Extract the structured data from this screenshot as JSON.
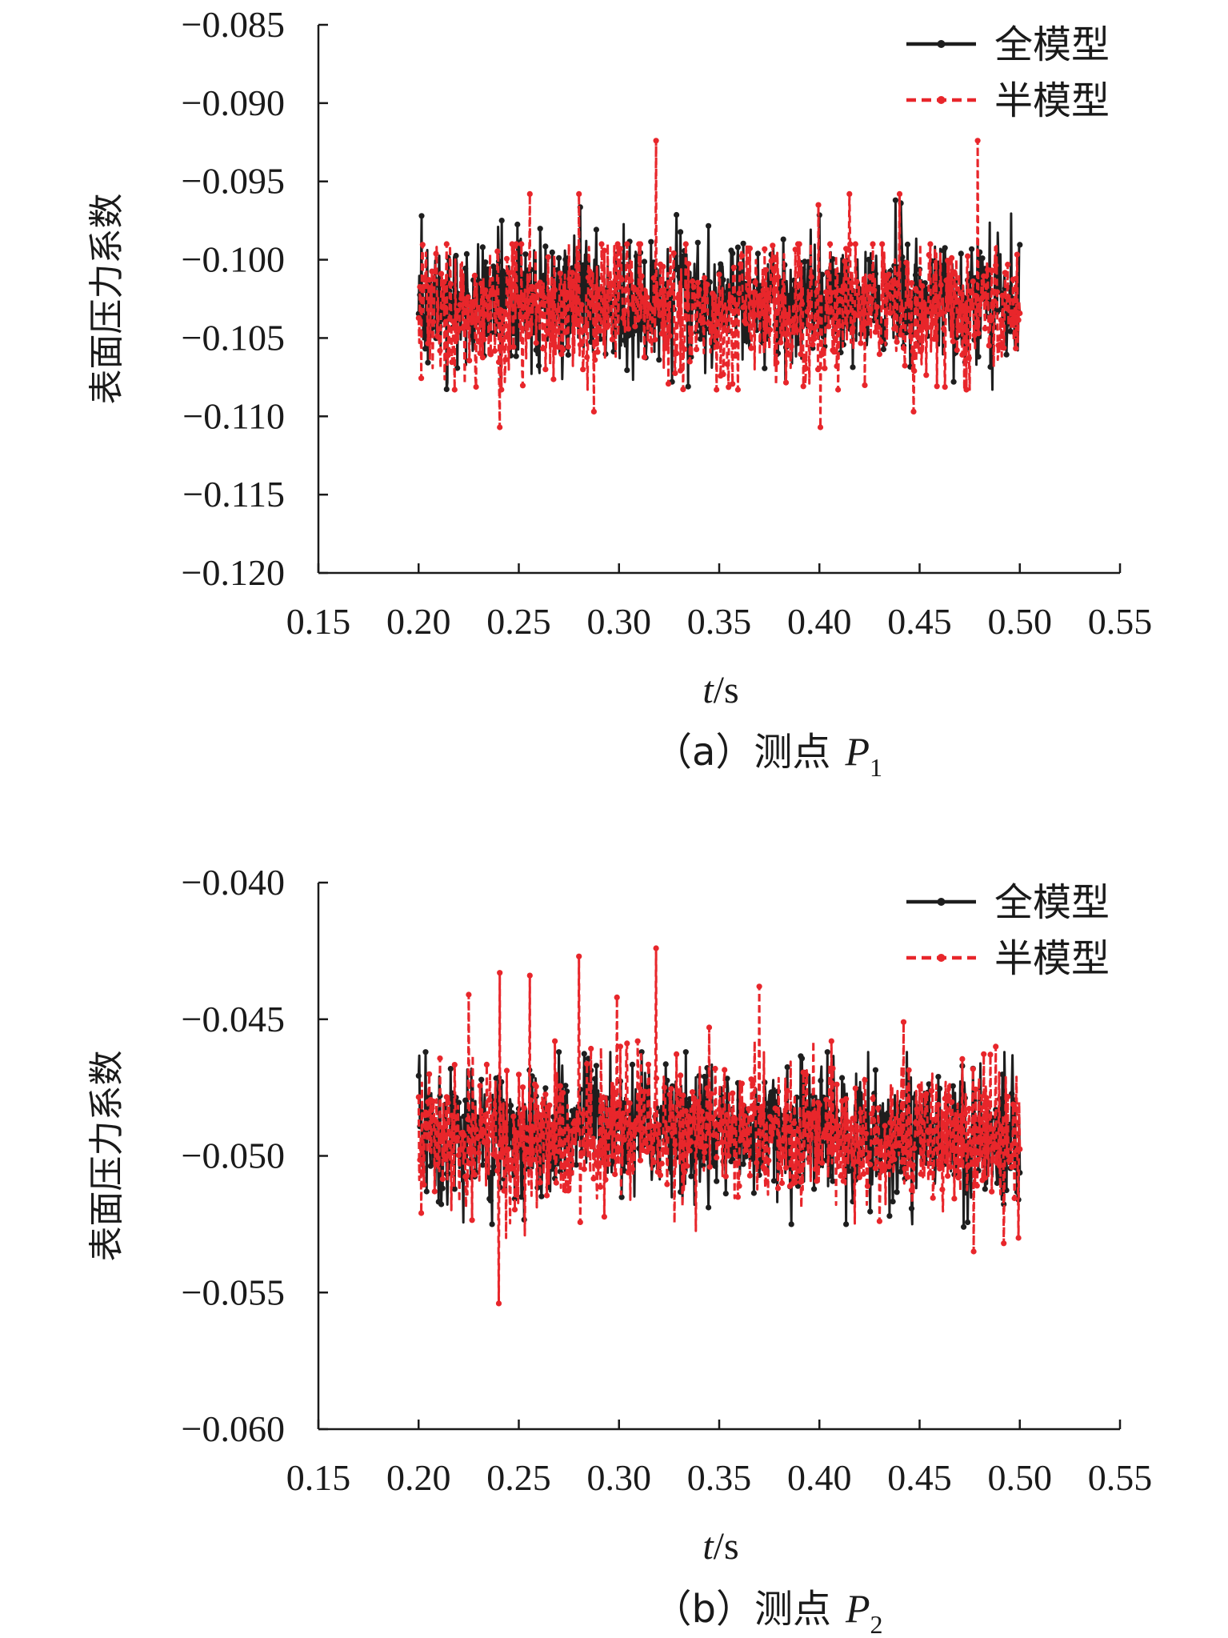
{
  "chart_data": [
    {
      "type": "line",
      "panel": "a",
      "caption": {
        "prefix": "（a）",
        "text": "测点",
        "var": "P",
        "sub": "1"
      },
      "ylabel": "表面压力系数",
      "xlabel": {
        "var": "t",
        "unit": "/s"
      },
      "xlim": [
        0.15,
        0.55
      ],
      "ylim": [
        -0.12,
        -0.085
      ],
      "xticks": [
        "0.15",
        "0.20",
        "0.25",
        "0.30",
        "0.35",
        "0.40",
        "0.45",
        "0.50",
        "0.55"
      ],
      "yticks": [
        "−0.085",
        "−0.090",
        "−0.095",
        "−0.100",
        "−0.105",
        "−0.110",
        "−0.115",
        "−0.120"
      ],
      "legend_position": "top-right",
      "t_range": [
        0.2,
        0.5
      ],
      "series": [
        {
          "name": "全模型",
          "color": "#1e1e1e",
          "style": "solid",
          "mean": -0.1026,
          "spread": 0.002,
          "min": -0.1083,
          "max": -0.0963,
          "spikes": [
            [
              0.2015,
              -0.0972
            ],
            [
              0.2415,
              -0.0975
            ],
            [
              0.3345,
              -0.1081
            ],
            [
              0.3265,
              -0.1078
            ],
            [
              0.438,
              -0.0962
            ],
            [
              0.467,
              -0.1078
            ]
          ]
        },
        {
          "name": "半模型",
          "color": "#e8262b",
          "style": "dashed",
          "mean": -0.1033,
          "spread": 0.0022,
          "min": -0.1083,
          "max": -0.099,
          "spikes": [
            [
              0.2405,
              -0.1107
            ],
            [
              0.2555,
              -0.0958
            ],
            [
              0.28,
              -0.0958
            ],
            [
              0.2875,
              -0.1097
            ],
            [
              0.3185,
              -0.0924
            ],
            [
              0.3995,
              -0.0965
            ],
            [
              0.4005,
              -0.1107
            ],
            [
              0.415,
              -0.0958
            ],
            [
              0.44,
              -0.0958
            ],
            [
              0.447,
              -0.1097
            ],
            [
              0.479,
              -0.0924
            ]
          ]
        }
      ]
    },
    {
      "type": "line",
      "panel": "b",
      "caption": {
        "prefix": "（b）",
        "text": "测点",
        "var": "P",
        "sub": "2"
      },
      "ylabel": "表面压力系数",
      "xlabel": {
        "var": "t",
        "unit": "/s"
      },
      "xlim": [
        0.15,
        0.55
      ],
      "ylim": [
        -0.06,
        -0.04
      ],
      "xticks": [
        "0.15",
        "0.20",
        "0.25",
        "0.30",
        "0.35",
        "0.40",
        "0.45",
        "0.50",
        "0.55"
      ],
      "yticks": [
        "−0.040",
        "−0.045",
        "−0.050",
        "−0.055",
        "−0.060"
      ],
      "legend_position": "top-right",
      "t_range": [
        0.2,
        0.5
      ],
      "series": [
        {
          "name": "全模型",
          "color": "#1e1e1e",
          "style": "solid",
          "mean": -0.0492,
          "spread": 0.0012,
          "min": -0.0525,
          "max": -0.0462,
          "spikes": [
            [
              0.2035,
              -0.0462
            ],
            [
              0.27,
              -0.0462
            ],
            [
              0.435,
              -0.0522
            ],
            [
              0.472,
              -0.0526
            ]
          ]
        },
        {
          "name": "半模型",
          "color": "#e8262b",
          "style": "dashed",
          "mean": -0.0494,
          "spread": 0.0013,
          "min": -0.053,
          "max": -0.0458,
          "spikes": [
            [
              0.225,
              -0.0441
            ],
            [
              0.2405,
              -0.0433
            ],
            [
              0.24,
              -0.0554
            ],
            [
              0.2555,
              -0.0434
            ],
            [
              0.28,
              -0.0427
            ],
            [
              0.299,
              -0.0442
            ],
            [
              0.3185,
              -0.0424
            ],
            [
              0.345,
              -0.0453
            ],
            [
              0.37,
              -0.0438
            ],
            [
              0.442,
              -0.0451
            ],
            [
              0.477,
              -0.0535
            ],
            [
              0.488,
              -0.046
            ],
            [
              0.492,
              -0.0532
            ]
          ]
        }
      ]
    }
  ]
}
